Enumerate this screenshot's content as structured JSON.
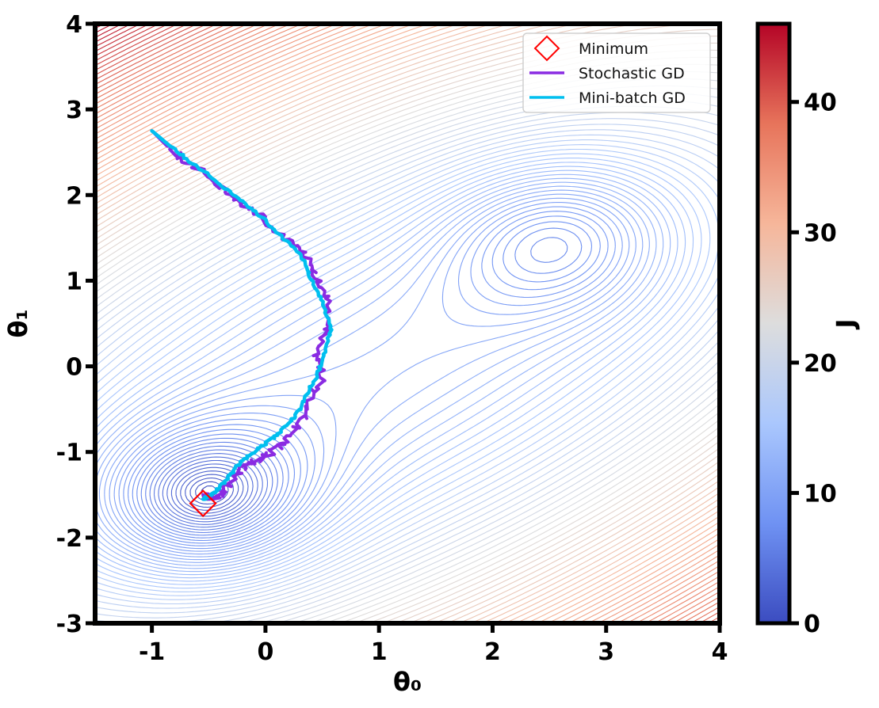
{
  "chart_data": {
    "type": "line",
    "title": "",
    "xlabel": "θ₀",
    "ylabel": "θ₁",
    "colorbar_label": "J",
    "xlim": [
      -1.5,
      4
    ],
    "ylim": [
      -3,
      4
    ],
    "x_ticks": [
      -1,
      0,
      1,
      2,
      3,
      4
    ],
    "x_tick_labels": [
      "-1",
      "0",
      "1",
      "2",
      "3",
      "4"
    ],
    "y_ticks": [
      -3,
      -2,
      -1,
      0,
      1,
      2,
      3,
      4
    ],
    "y_tick_labels": [
      "-3",
      "-2",
      "-1",
      "0",
      "1",
      "2",
      "3",
      "4"
    ],
    "colorbar_ticks": [
      0,
      10,
      20,
      30,
      40
    ],
    "colorbar_tick_labels": [
      "0",
      "10",
      "20",
      "30",
      "40"
    ],
    "colorbar_range": [
      0,
      46
    ],
    "colormap": [
      "#3b4cc0",
      "#6f92f3",
      "#aac7fd",
      "#dddddd",
      "#f6b69a",
      "#e7745b",
      "#b40426"
    ],
    "grid": false,
    "legend_location": "upper right",
    "contour": {
      "description": "two-basin cost surface",
      "minima": [
        {
          "x": -0.55,
          "y": -1.6
        },
        {
          "x": 2.6,
          "y": 1.55
        }
      ],
      "line_color": "#3b4cc0"
    },
    "series": [
      {
        "name": "Minimum",
        "kind": "marker",
        "marker": "diamond",
        "color": "#ff0000",
        "x": [
          -0.55
        ],
        "y": [
          -1.6
        ]
      },
      {
        "name": "Stochastic GD",
        "kind": "line",
        "color": "#8a2be2",
        "x": [
          -1.0,
          -0.85,
          -0.65,
          -0.45,
          -0.25,
          -0.05,
          0.15,
          0.35,
          0.45,
          0.55,
          0.55,
          0.45,
          0.5,
          0.38,
          0.28,
          0.15,
          0.0,
          -0.15,
          -0.25,
          -0.35,
          -0.45,
          -0.55
        ],
        "y": [
          2.75,
          2.55,
          2.35,
          2.15,
          1.95,
          1.75,
          1.5,
          1.3,
          1.05,
          0.75,
          0.45,
          0.15,
          -0.15,
          -0.45,
          -0.7,
          -0.9,
          -1.05,
          -1.15,
          -1.25,
          -1.45,
          -1.55,
          -1.5
        ]
      },
      {
        "name": "Mini-batch GD",
        "kind": "line",
        "color": "#00bfef",
        "x": [
          -1.0,
          -0.82,
          -0.6,
          -0.4,
          -0.2,
          -0.02,
          0.15,
          0.32,
          0.4,
          0.5,
          0.58,
          0.52,
          0.45,
          0.35,
          0.25,
          0.1,
          -0.05,
          -0.2,
          -0.3,
          -0.4,
          -0.5,
          -0.55
        ],
        "y": [
          2.75,
          2.55,
          2.33,
          2.12,
          1.93,
          1.72,
          1.5,
          1.28,
          1.03,
          0.75,
          0.45,
          0.15,
          -0.12,
          -0.38,
          -0.6,
          -0.8,
          -0.95,
          -1.1,
          -1.25,
          -1.42,
          -1.52,
          -1.55
        ]
      }
    ]
  }
}
